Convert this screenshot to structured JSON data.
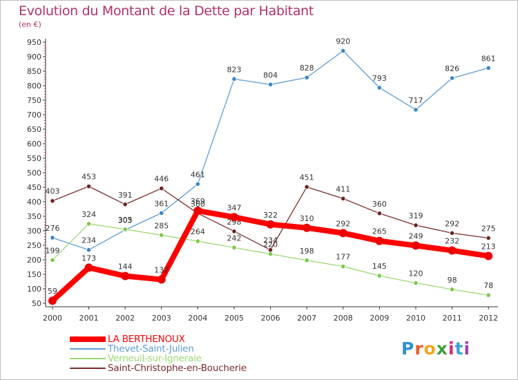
{
  "title": "Evolution du Montant de la Dette par Habitant",
  "subtitle": "(en €)",
  "logo": {
    "text": "Proxiti",
    "letter_colors": [
      "#2f8fd0",
      "#e85a2a",
      "#f2a51c",
      "#3f9f3f",
      "#d8287a",
      "#3aa2d8",
      "#9c3fb5"
    ]
  },
  "chart_data": {
    "type": "line",
    "title": "Evolution du Montant de la Dette par Habitant",
    "subtitle": "(en €)",
    "x": [
      "2000",
      "2001",
      "2002",
      "2003",
      "2004",
      "2005",
      "2006",
      "2007",
      "2008",
      "2009",
      "2010",
      "2011",
      "2012"
    ],
    "y_ticks": [
      50,
      100,
      150,
      200,
      250,
      300,
      350,
      400,
      450,
      500,
      550,
      600,
      650,
      700,
      750,
      800,
      850,
      900,
      950
    ],
    "ylim": [
      50,
      950
    ],
    "grid": false,
    "legend_position": "bottom-left",
    "series": [
      {
        "name": "Thevet-Saint-Julien",
        "color": "#5b9bd5",
        "marker": "#3a87c8",
        "values": [
          276,
          234,
          303,
          361,
          461,
          823,
          804,
          828,
          920,
          793,
          717,
          826,
          861
        ]
      },
      {
        "name": "Verneuil-sur-Igneraie",
        "color": "#9ad870",
        "marker": "#7cc84a",
        "values": [
          199,
          324,
          305,
          285,
          264,
          242,
          220,
          198,
          177,
          145,
          120,
          98,
          78
        ]
      },
      {
        "name": "Saint-Christophe-en-Boucherie",
        "color": "#7a2a2a",
        "marker": "#6b2222",
        "values": [
          403,
          453,
          391,
          446,
          360,
          298,
          234,
          451,
          411,
          360,
          319,
          292,
          275
        ]
      },
      {
        "name": "LA BERTHENOUX",
        "color": "#ff0000",
        "marker": "#ee0000",
        "values": [
          59,
          173,
          144,
          132,
          369,
          347,
          322,
          310,
          292,
          265,
          249,
          232,
          213
        ]
      }
    ]
  },
  "legend": [
    {
      "label": "LA BERTHENOUX",
      "color": "#ff0000",
      "thick": true
    },
    {
      "label": "Thevet-Saint-Julien",
      "color": "#5b9bd5",
      "thick": false
    },
    {
      "label": "Verneuil-sur-Igneraie",
      "color": "#9ad870",
      "thick": false
    },
    {
      "label": "Saint-Christophe-en-Boucherie",
      "color": "#7a2a2a",
      "thick": false
    }
  ]
}
